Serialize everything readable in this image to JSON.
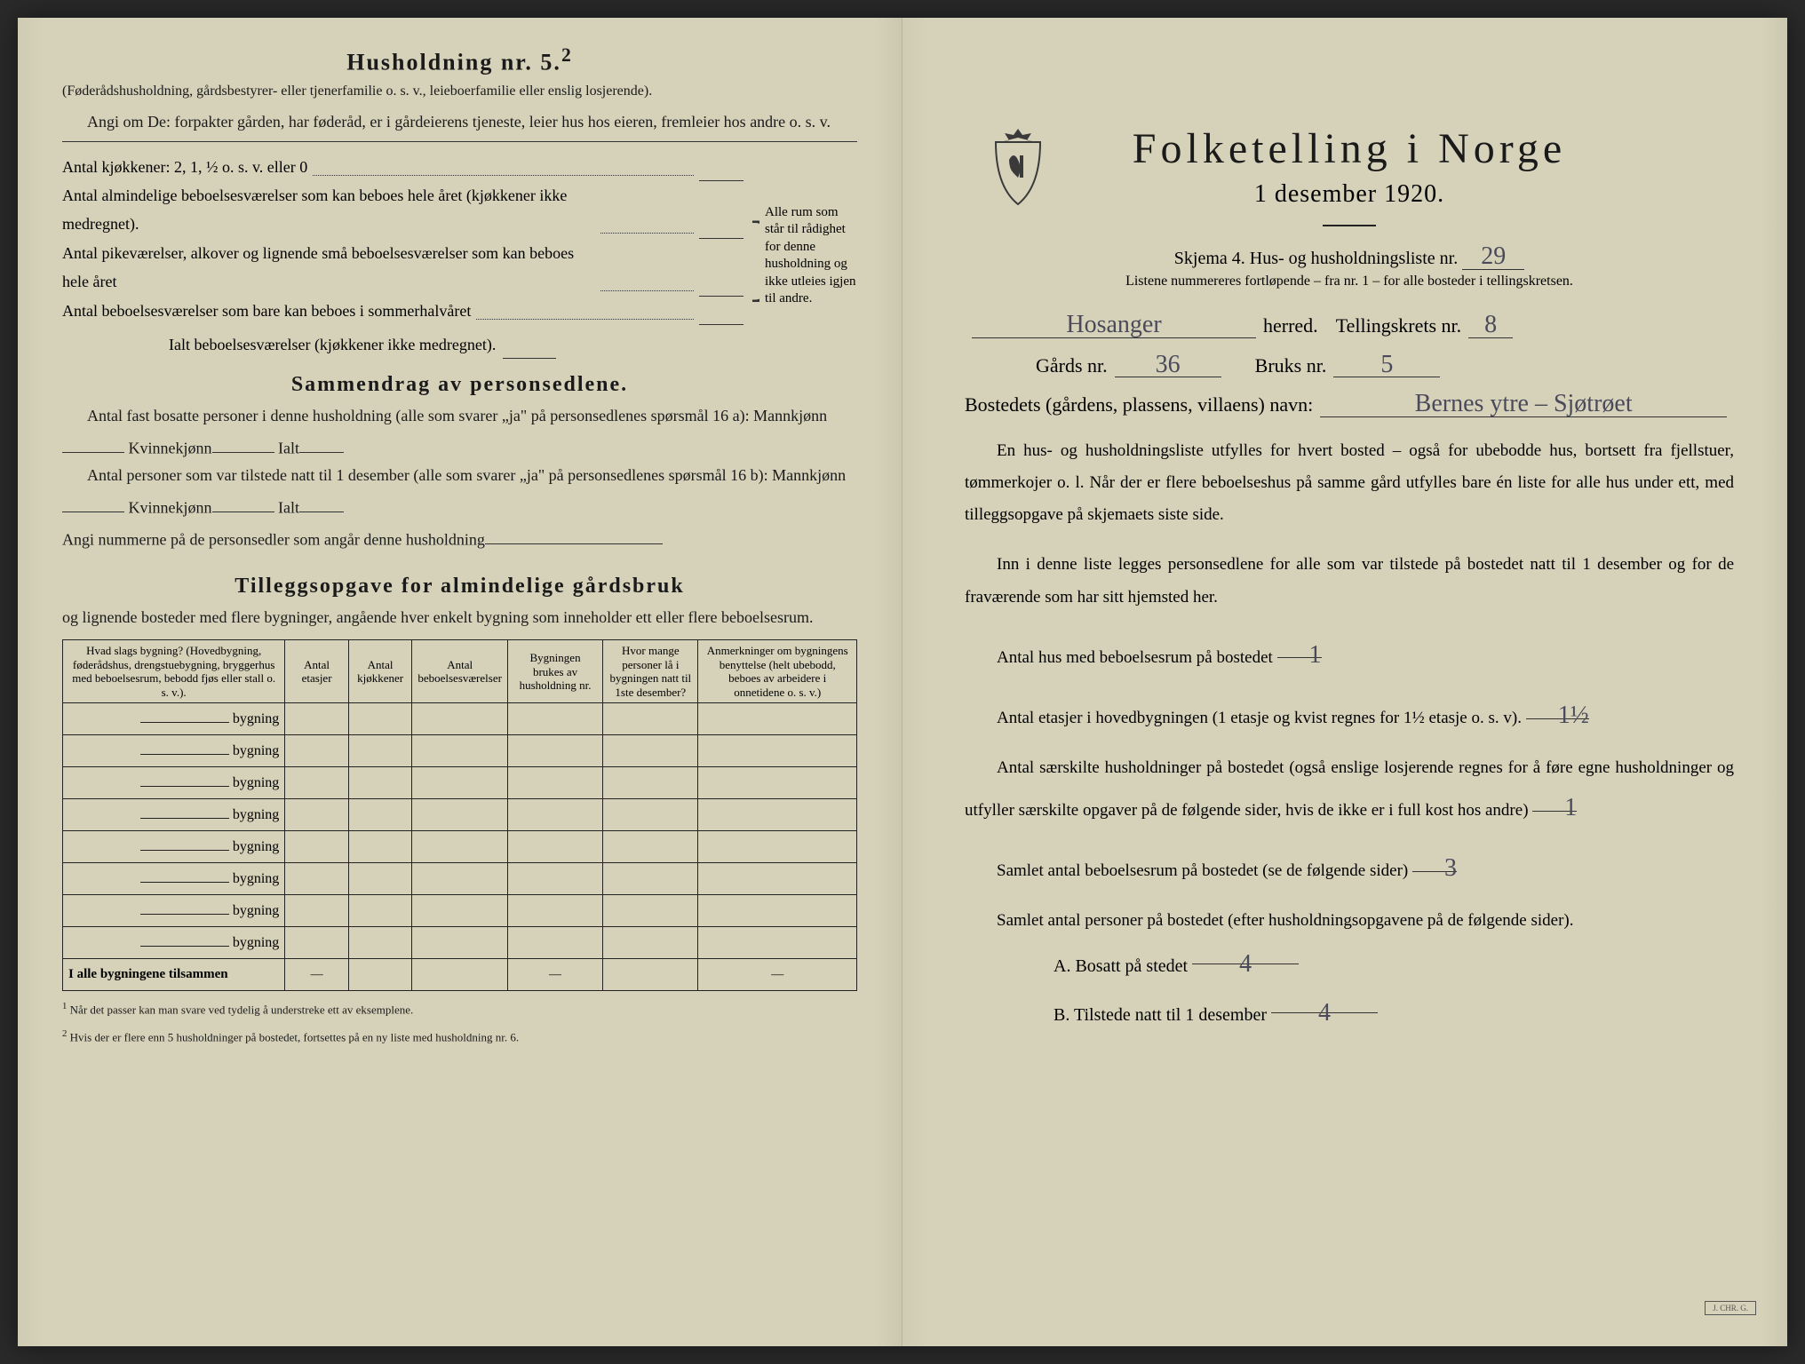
{
  "left": {
    "h5_title": "Husholdning nr. 5.",
    "h5_sup": "2",
    "h5_note1": "(Føderådshusholdning, gårdsbestyrer- eller tjenerfamilie o. s. v., leieboerfamilie eller enslig losjerende).",
    "h5_note2": "Angi om De: forpakter gården, har føderåd, er i gårdeierens tjeneste, leier hus hos eieren, fremleier hos andre o. s. v.",
    "kitchens": "Antal kjøkkener: 2, 1, ½ o. s. v. eller 0",
    "rooms1": "Antal almindelige beboelsesværelser som kan beboes hele året (kjøkkener ikke medregnet).",
    "rooms2": "Antal pikeværelser, alkover og lignende små beboelsesværelser som kan beboes hele året",
    "rooms3": "Antal beboelsesværelser som bare kan beboes i sommerhalvåret",
    "rooms_total": "Ialt beboelsesværelser (kjøkkener ikke medregnet).",
    "brace_note": "Alle rum som står til rådighet for denne husholdning og ikke utleies igjen til andre.",
    "summary_title": "Sammendrag av personsedlene.",
    "sum1a": "Antal fast bosatte personer i denne husholdning (alle som svarer „ja\" på personsedlenes spørsmål 16 a): Mannkjønn",
    "sum1b": "Kvinnekjønn",
    "sum1c": "Ialt",
    "sum2a": "Antal personer som var tilstede natt til 1 desember (alle som svarer „ja\" på personsedlenes spørsmål 16 b): Mannkjønn",
    "sum3": "Angi nummerne på de personsedler som angår denne husholdning",
    "tillegg_title": "Tilleggsopgave for almindelige gårdsbruk",
    "tillegg_sub": "og lignende bosteder med flere bygninger, angående hver enkelt bygning som inneholder ett eller flere beboelsesrum.",
    "th1": "Hvad slags bygning?\n(Hovedbygning, føderådshus, drengstuebygning, bryggerhus med beboelsesrum, bebodd fjøs eller stall o. s. v.).",
    "th2": "Antal etasjer",
    "th3": "Antal kjøkkener",
    "th4": "Antal beboelsesværelser",
    "th5": "Bygningen brukes av husholdning nr.",
    "th6": "Hvor mange personer lå i bygningen natt til 1ste desember?",
    "th7": "Anmerkninger om bygningens benyttelse (helt ubebodd, beboes av arbeidere i onnetidene o. s. v.)",
    "row_label": "bygning",
    "total_row": "I alle bygningene tilsammen",
    "foot1": "Når det passer kan man svare ved tydelig å understreke ett av eksemplene.",
    "foot2": "Hvis der er flere enn 5 husholdninger på bostedet, fortsettes på en ny liste med husholdning nr. 6."
  },
  "right": {
    "title": "Folketelling i Norge",
    "subtitle": "1 desember 1920.",
    "schema": "Skjema 4.  Hus- og husholdningsliste nr.",
    "schema_nr": "29",
    "schema_note": "Listene nummereres fortløpende – fra nr. 1 – for alle bosteder i tellingskretsen.",
    "herred_val": "Hosanger",
    "herred_lbl": "herred.",
    "krets_lbl": "Tellingskrets nr.",
    "krets_val": "8",
    "gards_lbl": "Gårds nr.",
    "gards_val": "36",
    "bruks_lbl": "Bruks nr.",
    "bruks_val": "5",
    "bosted_lbl": "Bostedets (gårdens, plassens, villaens) navn:",
    "bosted_val": "Bernes ytre – Sjøtrøet",
    "p1": "En hus- og husholdningsliste utfylles for hvert bosted – også for ubebodde hus, bortsett fra fjellstuer, tømmerkojer o. l. Når der er flere beboelseshus på samme gård utfylles bare én liste for alle hus under ett, med tilleggsopgave på skjemaets siste side.",
    "p2": "Inn i denne liste legges personsedlene for alle som var tilstede på bostedet natt til 1 desember og for de fraværende som har sitt hjemsted her.",
    "q1": "Antal hus med beboelsesrum på bostedet",
    "q1v": "1",
    "q2a": "Antal etasjer i hovedbygningen (1 etasje og kvist regnes for 1½ etasje o. s. v).",
    "q2v": "1½",
    "q3": "Antal særskilte husholdninger på bostedet (også enslige losjerende regnes for å føre egne husholdninger og utfyller særskilte opgaver på de følgende sider, hvis de ikke er i full kost hos andre)",
    "q3v": "1",
    "q4": "Samlet antal beboelsesrum på bostedet (se de følgende sider)",
    "q4v": "3",
    "q5": "Samlet antal personer på bostedet (efter husholdningsopgavene på de følgende sider).",
    "qa": "A.  Bosatt på stedet",
    "qav": "4",
    "qb": "B.  Tilstede natt til 1 desember",
    "qbv": "4"
  }
}
